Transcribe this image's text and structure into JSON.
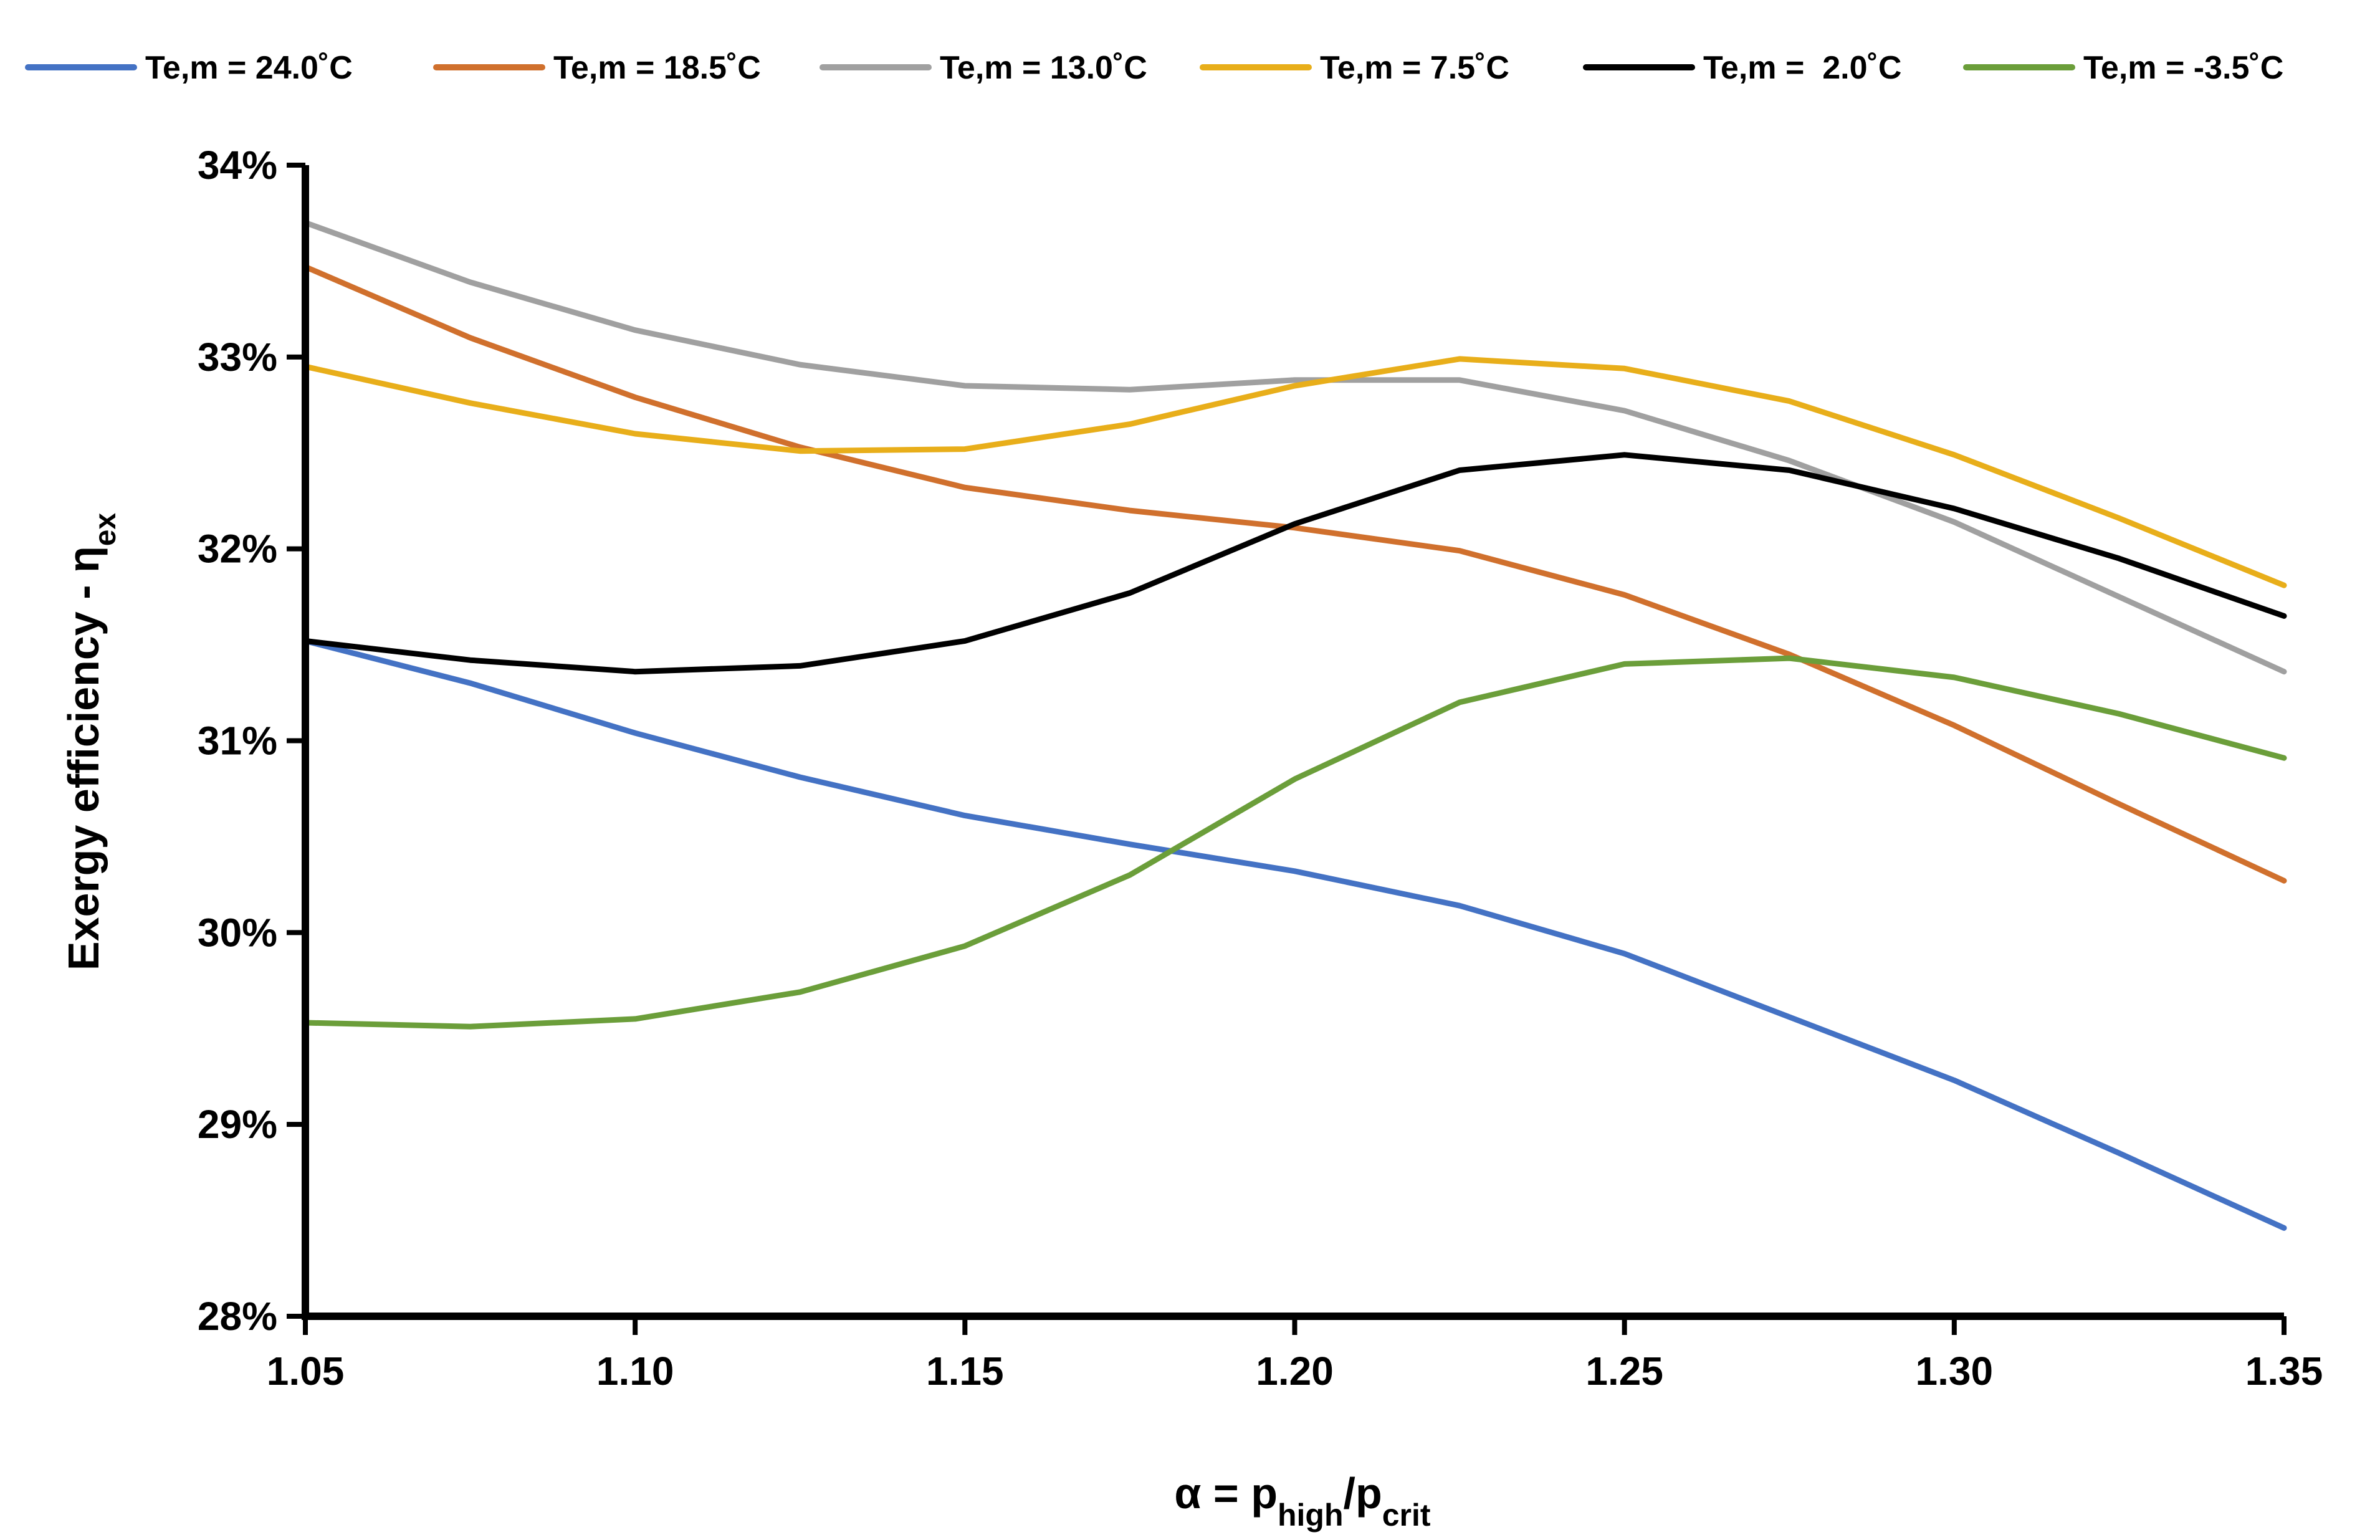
{
  "chart_data": {
    "type": "line",
    "title": "",
    "xlabel": {
      "base": "α = p",
      "sub1": "high",
      "mid": "/p",
      "sub2": "crit"
    },
    "ylabel": {
      "base": "Exergy efficiency - η",
      "sub": "ex"
    },
    "x": [
      1.05,
      1.075,
      1.1,
      1.125,
      1.15,
      1.175,
      1.2,
      1.225,
      1.25,
      1.275,
      1.3,
      1.325,
      1.35
    ],
    "xlim": [
      1.05,
      1.35
    ],
    "ylim": [
      28,
      34
    ],
    "x_ticks": [
      1.05,
      1.1,
      1.15,
      1.2,
      1.25,
      1.3,
      1.35
    ],
    "x_tick_labels": [
      "1.05",
      "1.10",
      "1.15",
      "1.20",
      "1.25",
      "1.30",
      "1.35"
    ],
    "y_ticks": [
      28,
      29,
      30,
      31,
      32,
      33,
      34
    ],
    "y_tick_labels": [
      "28%",
      "29%",
      "30%",
      "31%",
      "32%",
      "33%",
      "34%"
    ],
    "grid": false,
    "legend_position": "top",
    "series": [
      {
        "name": "Te,m = 24.0˚C",
        "color": "#4472C4",
        "values": [
          31.52,
          31.3,
          31.04,
          30.81,
          30.61,
          30.46,
          30.32,
          30.14,
          29.89,
          29.56,
          29.23,
          28.85,
          28.46
        ]
      },
      {
        "name": "Te,m = 18.5˚C",
        "color": "#D0702D",
        "values": [
          33.47,
          33.1,
          32.79,
          32.53,
          32.32,
          32.2,
          32.11,
          31.99,
          31.76,
          31.45,
          31.08,
          30.67,
          30.27
        ]
      },
      {
        "name": "Te,m = 13.0˚C",
        "color": "#A0A0A0",
        "values": [
          33.7,
          33.39,
          33.14,
          32.96,
          32.85,
          32.83,
          32.88,
          32.88,
          32.72,
          32.46,
          32.14,
          31.75,
          31.36
        ]
      },
      {
        "name": "Te,m = 7.5˚C",
        "color": "#E8AE1A",
        "values": [
          32.95,
          32.76,
          32.6,
          32.51,
          32.52,
          32.65,
          32.85,
          32.99,
          32.94,
          32.77,
          32.49,
          32.16,
          31.81
        ]
      },
      {
        "name": "Te,m =  2.0˚C",
        "color": "#000000",
        "values": [
          31.52,
          31.42,
          31.36,
          31.39,
          31.52,
          31.77,
          32.13,
          32.41,
          32.49,
          32.41,
          32.21,
          31.95,
          31.65
        ]
      },
      {
        "name": "Te,m = -3.5˚C",
        "color": "#6B9E3A",
        "values": [
          29.53,
          29.51,
          29.55,
          29.69,
          29.93,
          30.3,
          30.8,
          31.2,
          31.4,
          31.43,
          31.33,
          31.14,
          30.91
        ]
      }
    ]
  }
}
